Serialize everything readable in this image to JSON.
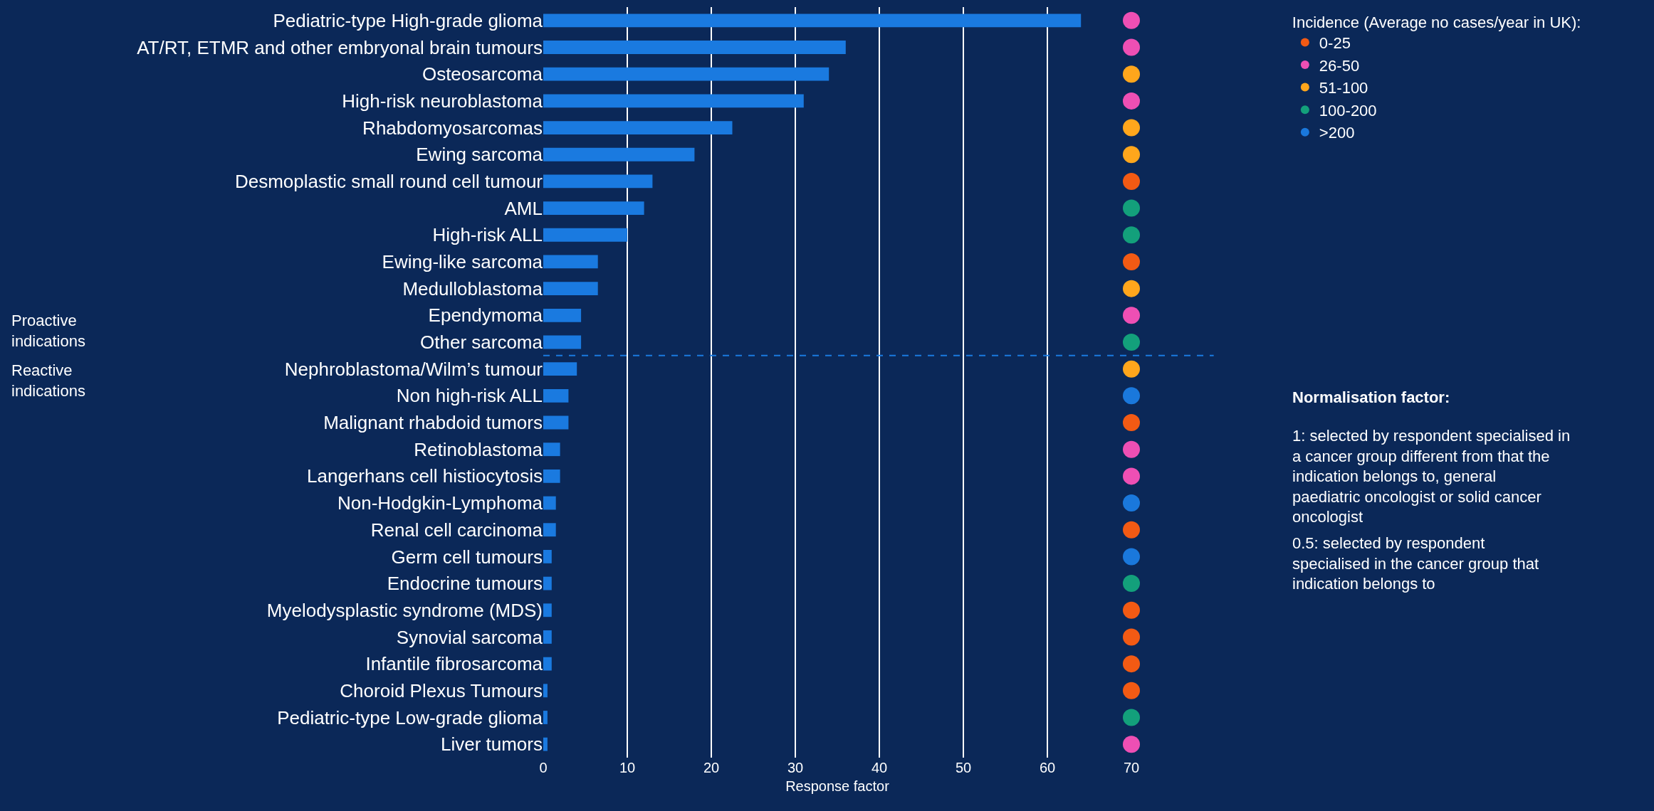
{
  "chart_data": {
    "type": "bar",
    "orientation": "horizontal",
    "xlabel": "Response factor",
    "legend_title": "Incidence (Average no cases/year in UK):",
    "categories": [
      "Pediatric-type High-grade glioma",
      "AT/RT, ETMR and other embryonal brain tumours",
      "Osteosarcoma",
      "High-risk neuroblastoma",
      "Rhabdomyosarcomas",
      "Ewing sarcoma",
      "Desmoplastic small round cell tumour",
      "AML",
      "High-risk ALL",
      "Ewing-like sarcoma",
      "Medulloblastoma",
      "Ependymoma",
      "Other sarcoma",
      "Nephroblastoma/Wilm’s tumour",
      "Non high-risk ALL",
      "Malignant rhabdoid tumors",
      "Retinoblastoma",
      "Langerhans cell histiocytosis",
      "Non-Hodgkin-Lymphoma",
      "Renal cell carcinoma",
      "Germ cell tumours",
      "Endocrine tumours",
      "Myelodysplastic syndrome (MDS)",
      "Synovial sarcoma",
      "Infantile fibrosarcoma",
      "Choroid Plexus Tumours",
      "Pediatric-type Low-grade glioma",
      "Liver tumors"
    ],
    "series": [
      {
        "type": "bar",
        "color": "#1a7ae0",
        "values": [
          64,
          36,
          34,
          31,
          22.5,
          18,
          13,
          12,
          10,
          6.5,
          6.5,
          4.5,
          4.5,
          4,
          3,
          3,
          2,
          2,
          1.5,
          1.5,
          1,
          1,
          1,
          1,
          1,
          0.5,
          0.5,
          0.5
        ]
      },
      {
        "type": "scatter",
        "name": "0-25",
        "color": "#f25a14",
        "values": [
          null,
          null,
          null,
          null,
          null,
          null,
          70,
          null,
          null,
          70,
          null,
          null,
          null,
          null,
          null,
          70,
          null,
          null,
          null,
          70,
          null,
          null,
          70,
          70,
          70,
          70,
          null,
          null
        ]
      },
      {
        "type": "scatter",
        "name": "26-50",
        "color": "#ee4fb4",
        "values": [
          70,
          70,
          null,
          70,
          null,
          null,
          null,
          null,
          null,
          null,
          null,
          70,
          null,
          null,
          null,
          null,
          70,
          70,
          null,
          null,
          null,
          null,
          null,
          null,
          null,
          null,
          null,
          70
        ]
      },
      {
        "type": "scatter",
        "name": "51-100",
        "color": "#ffa61c",
        "values": [
          null,
          null,
          70,
          null,
          70,
          70,
          null,
          null,
          null,
          null,
          70,
          null,
          null,
          70,
          null,
          null,
          null,
          null,
          null,
          null,
          null,
          null,
          null,
          null,
          null,
          null,
          null,
          null
        ]
      },
      {
        "type": "scatter",
        "name": "100-200",
        "color": "#13a07b",
        "values": [
          null,
          null,
          null,
          null,
          null,
          null,
          null,
          70,
          70,
          null,
          null,
          null,
          70,
          null,
          null,
          null,
          null,
          null,
          null,
          null,
          null,
          70,
          null,
          null,
          null,
          null,
          70,
          null
        ]
      },
      {
        "type": "scatter",
        "name": ">200",
        "color": "#1a78dc",
        "values": [
          null,
          null,
          null,
          null,
          null,
          null,
          null,
          null,
          null,
          null,
          null,
          null,
          null,
          null,
          70,
          null,
          null,
          null,
          70,
          null,
          70,
          null,
          null,
          null,
          null,
          null,
          null,
          null
        ]
      }
    ],
    "xlim": [
      0,
      70
    ],
    "xticks": [
      0,
      10,
      20,
      30,
      40,
      50,
      60,
      70
    ],
    "grid": "x",
    "legend": "top right",
    "marker": "circle",
    "ref_lines": [
      {
        "axis": "y",
        "value": "Other sarcoma",
        "color": "#1a7ae0",
        "line_style": "dashed"
      }
    ],
    "annotations": [
      "Proactive indications",
      "Reactive indications",
      "Normalisation factor:",
      "1: selected by respondent specialised in a cancer group different from that the indication belongs to, general paediatric oncologist or solid cancer oncologist",
      "0.5: selected by respondent specialised in the cancer group that indication belongs to"
    ]
  }
}
